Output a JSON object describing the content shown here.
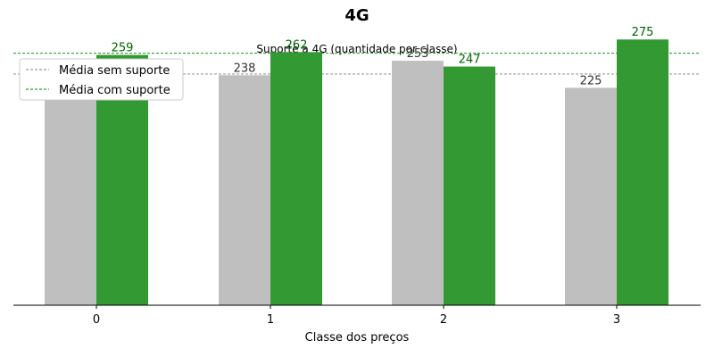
{
  "chart_data": {
    "type": "bar",
    "title": "4G",
    "subtitle": "Suporte a 4G (quantidade por classe)",
    "xlabel": "Classe dos preços",
    "ylabel": "",
    "categories": [
      "0",
      "1",
      "2",
      "3"
    ],
    "series": [
      {
        "values": [
          241,
          238,
          253,
          225
        ],
        "color": "#bfbfbf",
        "label_color": "#333333"
      },
      {
        "values": [
          259,
          262,
          247,
          275
        ],
        "color": "#339933",
        "label_color": "#006400"
      }
    ],
    "reference_lines": [
      {
        "name": "Média sem suporte",
        "value": 239.25,
        "color": "#808080",
        "style": "dashed"
      },
      {
        "name": "Média com suporte",
        "value": 260.75,
        "color": "#008000",
        "style": "dashed"
      }
    ],
    "ylim": [
      0,
      290
    ],
    "grid": false,
    "legend_position": "top-left"
  }
}
